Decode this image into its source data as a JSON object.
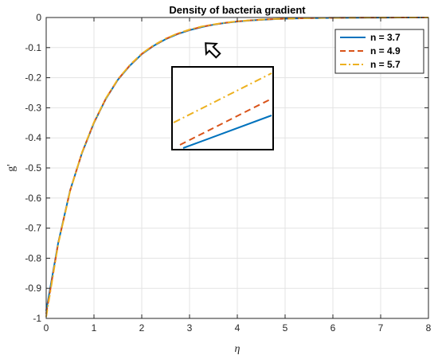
{
  "chart_data": {
    "type": "line",
    "title": "Density of bacteria gradient",
    "xlabel": "η",
    "ylabel": "g'",
    "xlim": [
      0,
      8
    ],
    "ylim": [
      -1,
      0
    ],
    "xticks": [
      "0",
      "1",
      "2",
      "3",
      "4",
      "5",
      "6",
      "7",
      "8"
    ],
    "yticks": [
      "0",
      "-0.1",
      "-0.2",
      "-0.3",
      "-0.4",
      "-0.5",
      "-0.6",
      "-0.7",
      "-0.8",
      "-0.9",
      "-1"
    ],
    "grid": true,
    "legend_position": "top-right",
    "x": [
      0,
      0.25,
      0.5,
      0.75,
      1,
      1.25,
      1.5,
      1.75,
      2,
      2.25,
      2.5,
      2.75,
      3,
      3.25,
      3.5,
      3.75,
      4,
      4.25,
      4.5,
      4.75,
      5,
      5.25,
      5.5,
      5.75,
      6,
      6.5,
      7,
      7.5,
      8
    ],
    "series": [
      {
        "name": "n = 3.7",
        "color": "#0072BD",
        "style": "solid",
        "values": [
          -0.975,
          -0.75,
          -0.575,
          -0.45,
          -0.35,
          -0.27,
          -0.207,
          -0.16,
          -0.122,
          -0.094,
          -0.072,
          -0.055,
          -0.042,
          -0.032,
          -0.024,
          -0.018,
          -0.0135,
          -0.01,
          -0.0075,
          -0.0055,
          -0.004,
          -0.003,
          -0.002,
          -0.0015,
          -0.001,
          -0.0005,
          -0.0002,
          -0.0001,
          0
        ]
      },
      {
        "name": "n = 4.9",
        "color": "#D95319",
        "style": "dashed",
        "values": [
          -0.985,
          -0.752,
          -0.576,
          -0.449,
          -0.349,
          -0.269,
          -0.206,
          -0.159,
          -0.121,
          -0.093,
          -0.071,
          -0.054,
          -0.041,
          -0.031,
          -0.0235,
          -0.0175,
          -0.013,
          -0.0097,
          -0.0072,
          -0.0053,
          -0.0039,
          -0.0029,
          -0.002,
          -0.0014,
          -0.001,
          -0.0005,
          -0.0002,
          -0.0001,
          0
        ]
      },
      {
        "name": "n = 5.7",
        "color": "#EDB120",
        "style": "dashdot",
        "values": [
          -0.995,
          -0.754,
          -0.577,
          -0.448,
          -0.348,
          -0.268,
          -0.205,
          -0.158,
          -0.12,
          -0.092,
          -0.07,
          -0.053,
          -0.04,
          -0.03,
          -0.023,
          -0.017,
          -0.0126,
          -0.0094,
          -0.007,
          -0.0051,
          -0.0038,
          -0.0028,
          -0.002,
          -0.0014,
          -0.001,
          -0.0005,
          -0.0002,
          -0.0001,
          0
        ]
      }
    ]
  }
}
